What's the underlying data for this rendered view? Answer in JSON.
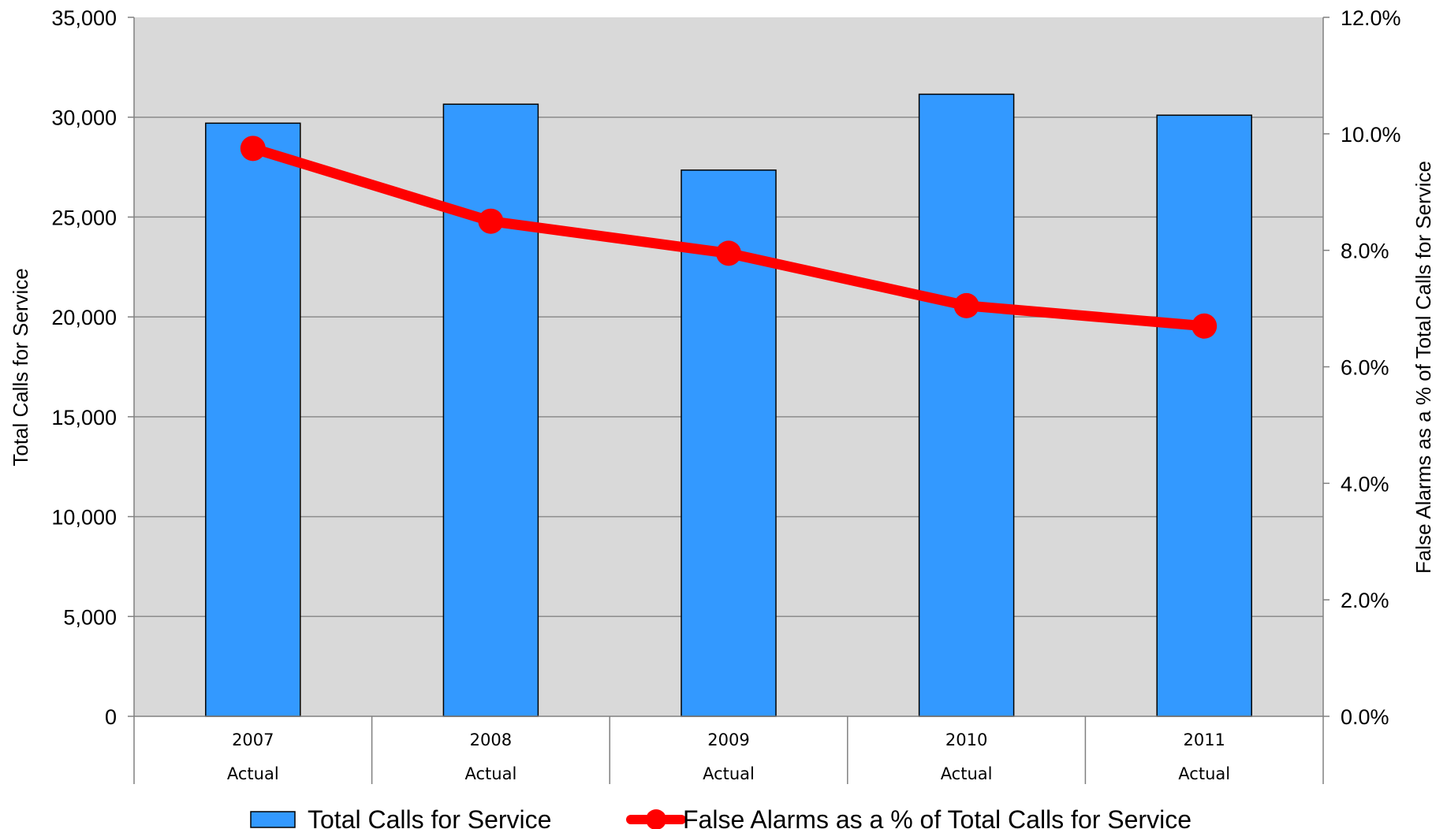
{
  "chart_data": {
    "type": "bar+line",
    "categories": [
      "2007",
      "2008",
      "2009",
      "2010",
      "2011"
    ],
    "category_sublabels": [
      "Actual",
      "Actual",
      "Actual",
      "Actual",
      "Actual"
    ],
    "series": [
      {
        "name": "Total Calls for Service",
        "type": "bar",
        "axis": "left",
        "color": "#3399ff",
        "values": [
          29700,
          30650,
          27350,
          31150,
          30100
        ]
      },
      {
        "name": "False Alarms as a % of Total Calls for Service",
        "type": "line",
        "axis": "right",
        "color": "#ff0000",
        "values": [
          9.75,
          8.5,
          7.95,
          7.05,
          6.7
        ]
      }
    ],
    "ylabel": "Total Calls for Service",
    "y2label": "False Alarms as a % of Total Calls for Service",
    "ylim": [
      0,
      35000
    ],
    "y2lim": [
      0,
      12
    ],
    "yticks": [
      "0",
      "5,000",
      "10,000",
      "15,000",
      "20,000",
      "25,000",
      "30,000",
      "35,000"
    ],
    "y2ticks": [
      "0.0%",
      "2.0%",
      "4.0%",
      "6.0%",
      "8.0%",
      "10.0%",
      "12.0%"
    ],
    "plot_background": "#d9d9d9",
    "grid": true,
    "legend_position": "bottom"
  }
}
